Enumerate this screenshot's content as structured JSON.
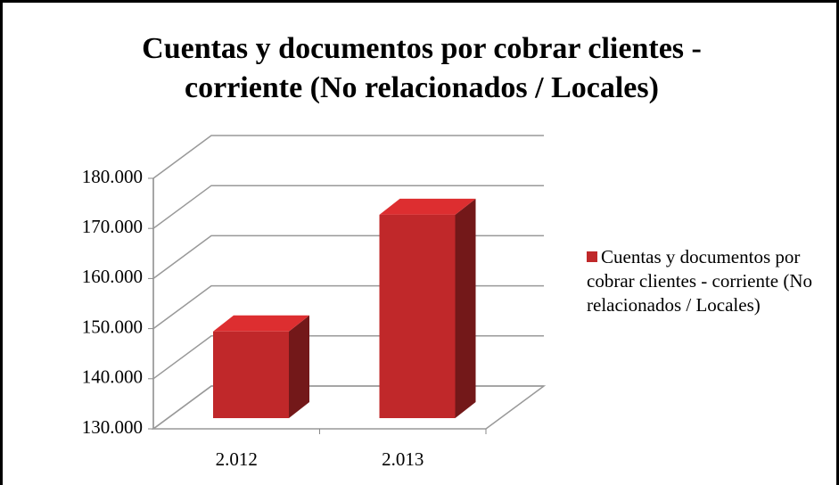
{
  "chart_data": {
    "type": "bar3d",
    "title": "Cuentas y documentos por cobrar clientes - corriente (No relacionados / Locales)",
    "categories": [
      "2.012",
      "2.013"
    ],
    "series": [
      {
        "name": "Cuentas y documentos por cobrar clientes - corriente (No relacionados / Locales)",
        "color": "#c0282a",
        "values": [
          147300,
          170600
        ]
      }
    ],
    "ylim": [
      130000,
      180000
    ],
    "yticks": [
      {
        "value": 130000,
        "label": "130.000"
      },
      {
        "value": 140000,
        "label": "140.000"
      },
      {
        "value": 150000,
        "label": "150.000"
      },
      {
        "value": 160000,
        "label": "160.000"
      },
      {
        "value": 170000,
        "label": "170.000"
      },
      {
        "value": 180000,
        "label": "180.000"
      }
    ],
    "grid": true,
    "legend": "right"
  }
}
